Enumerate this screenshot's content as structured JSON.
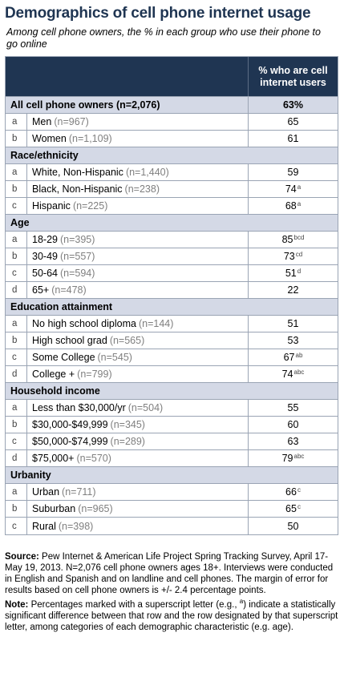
{
  "title": "Demographics of cell phone internet usage",
  "subtitle": "Among cell phone owners, the % in each group who use their phone to go online",
  "header": {
    "value_label": "% who are cell internet users"
  },
  "total": {
    "label": "All cell phone owners (n=2,076)",
    "value": "63%"
  },
  "sections": [
    {
      "title": null,
      "rows": [
        {
          "letter": "a",
          "label": "Men",
          "n": "(n=967)",
          "value": "65",
          "sup": ""
        },
        {
          "letter": "b",
          "label": "Women",
          "n": "(n=1,109)",
          "value": "61",
          "sup": ""
        }
      ]
    },
    {
      "title": "Race/ethnicity",
      "rows": [
        {
          "letter": "a",
          "label": "White, Non-Hispanic",
          "n": "(n=1,440)",
          "value": "59",
          "sup": ""
        },
        {
          "letter": "b",
          "label": "Black, Non-Hispanic",
          "n": "(n=238)",
          "value": "74",
          "sup": "a"
        },
        {
          "letter": "c",
          "label": "Hispanic",
          "n": "(n=225)",
          "value": "68",
          "sup": "a"
        }
      ]
    },
    {
      "title": "Age",
      "rows": [
        {
          "letter": "a",
          "label": "18-29",
          "n": "(n=395)",
          "value": "85",
          "sup": "bcd"
        },
        {
          "letter": "b",
          "label": "30-49",
          "n": "(n=557)",
          "value": "73",
          "sup": "cd"
        },
        {
          "letter": "c",
          "label": "50-64",
          "n": "(n=594)",
          "value": "51",
          "sup": "d"
        },
        {
          "letter": "d",
          "label": "65+",
          "n": "(n=478)",
          "value": "22",
          "sup": ""
        }
      ]
    },
    {
      "title": "Education attainment",
      "rows": [
        {
          "letter": "a",
          "label": "No high school diploma",
          "n": "(n=144)",
          "value": "51",
          "sup": ""
        },
        {
          "letter": "b",
          "label": "High school grad",
          "n": "(n=565)",
          "value": "53",
          "sup": ""
        },
        {
          "letter": "c",
          "label": "Some College",
          "n": "(n=545)",
          "value": "67",
          "sup": "ab"
        },
        {
          "letter": "d",
          "label": "College +",
          "n": "(n=799)",
          "value": "74",
          "sup": "abc"
        }
      ]
    },
    {
      "title": "Household income",
      "rows": [
        {
          "letter": "a",
          "label": "Less than $30,000/yr",
          "n": "(n=504)",
          "value": "55",
          "sup": ""
        },
        {
          "letter": "b",
          "label": "$30,000-$49,999",
          "n": "(n=345)",
          "value": "60",
          "sup": ""
        },
        {
          "letter": "c",
          "label": "$50,000-$74,999",
          "n": "(n=289)",
          "value": "63",
          "sup": ""
        },
        {
          "letter": "d",
          "label": "$75,000+",
          "n": "(n=570)",
          "value": "79",
          "sup": "abc"
        }
      ]
    },
    {
      "title": "Urbanity",
      "rows": [
        {
          "letter": "a",
          "label": "Urban",
          "n": "(n=711)",
          "value": "66",
          "sup": "c"
        },
        {
          "letter": "b",
          "label": "Suburban",
          "n": "(n=965)",
          "value": "65",
          "sup": "c"
        },
        {
          "letter": "c",
          "label": "Rural",
          "n": "(n=398)",
          "value": "50",
          "sup": ""
        }
      ]
    }
  ],
  "footer": {
    "source_label": "Source:",
    "source_text": "Pew Internet & American Life Project Spring Tracking Survey, April 17-May 19, 2013.  N=2,076 cell phone owners ages 18+. Interviews were conducted in English and Spanish and on landline and cell phones.  The margin of error for results based on cell phone owners is +/- 2.4 percentage points.",
    "note_label": "Note:",
    "note_before": "Percentages marked with a superscript letter (e.g., ",
    "note_sup": "a",
    "note_after": ") indicate a statistically significant difference between that row and the row designated by that superscript letter, among categories of each demographic characteristic (e.g. age)."
  },
  "chart_data": {
    "type": "table",
    "title": "Demographics of cell phone internet usage",
    "subtitle": "Among cell phone owners, the % in each group who use their phone to go online",
    "columns": [
      "% who are cell internet users"
    ],
    "rows": [
      {
        "group": "All cell phone owners (n=2,076)",
        "value": 63
      },
      {
        "group": "Men (n=967)",
        "value": 65
      },
      {
        "group": "Women (n=1,109)",
        "value": 61
      },
      {
        "group": "White, Non-Hispanic (n=1,440)",
        "value": 59
      },
      {
        "group": "Black, Non-Hispanic (n=238)",
        "value": 74
      },
      {
        "group": "Hispanic (n=225)",
        "value": 68
      },
      {
        "group": "18-29 (n=395)",
        "value": 85
      },
      {
        "group": "30-49 (n=557)",
        "value": 73
      },
      {
        "group": "50-64 (n=594)",
        "value": 51
      },
      {
        "group": "65+ (n=478)",
        "value": 22
      },
      {
        "group": "No high school diploma (n=144)",
        "value": 51
      },
      {
        "group": "High school grad (n=565)",
        "value": 53
      },
      {
        "group": "Some College (n=545)",
        "value": 67
      },
      {
        "group": "College + (n=799)",
        "value": 74
      },
      {
        "group": "Less than $30,000/yr (n=504)",
        "value": 55
      },
      {
        "group": "$30,000-$49,999 (n=345)",
        "value": 60
      },
      {
        "group": "$50,000-$74,999 (n=289)",
        "value": 63
      },
      {
        "group": "$75,000+ (n=570)",
        "value": 79
      },
      {
        "group": "Urban (n=711)",
        "value": 66
      },
      {
        "group": "Suburban (n=965)",
        "value": 65
      },
      {
        "group": "Rural (n=398)",
        "value": 50
      }
    ]
  }
}
